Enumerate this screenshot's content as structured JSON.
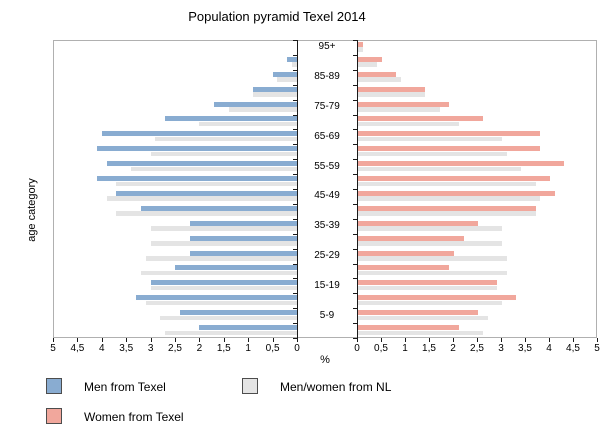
{
  "chart_data": {
    "type": "bar",
    "subtype": "population_pyramid",
    "title": "Population pyramid Texel 2014",
    "xlabel": "%",
    "ylabel": "age category",
    "decimal_separator": ",",
    "grid": false,
    "categories_top_to_bottom": [
      "95+",
      "90-94",
      "85-89",
      "80-84",
      "75-79",
      "70-74",
      "65-69",
      "60-64",
      "55-59",
      "50-54",
      "45-49",
      "40-44",
      "35-39",
      "30-34",
      "25-29",
      "20-24",
      "15-19",
      "10-14",
      "5-9",
      "0-4"
    ],
    "center_labels_visible": [
      "95+",
      "85-89",
      "75-79",
      "65-69",
      "55-59",
      "45-49",
      "35-39",
      "25-29",
      "15-19",
      "5-9"
    ],
    "x_axis": {
      "range_per_side": [
        0,
        5
      ],
      "unit": "%",
      "left_tick_labels": [
        "5",
        "4,5",
        "4",
        "3,5",
        "3",
        "2,5",
        "2",
        "1,5",
        "1",
        "0,5",
        "0"
      ],
      "right_tick_labels": [
        "0",
        "0,5",
        "1",
        "1,5",
        "2",
        "2,5",
        "3",
        "3,5",
        "4",
        "4,5",
        "5"
      ]
    },
    "series": [
      {
        "name": "Men from Texel",
        "side": "left",
        "color": "#89acd1",
        "values": [
          0,
          0.2,
          0.5,
          0.9,
          1.7,
          2.7,
          4.0,
          4.1,
          3.9,
          4.1,
          3.7,
          3.2,
          2.2,
          2.2,
          2.2,
          2.5,
          3.0,
          3.3,
          2.4,
          2.0
        ]
      },
      {
        "name": "Men/women from NL",
        "side": "left",
        "color": "#e4e4e4",
        "values": [
          0,
          0.1,
          0.4,
          0.9,
          1.4,
          2.0,
          2.9,
          3.0,
          3.4,
          3.7,
          3.9,
          3.7,
          3.0,
          3.0,
          3.1,
          3.2,
          3.0,
          3.1,
          2.8,
          2.7
        ]
      },
      {
        "name": "Women from Texel",
        "side": "right",
        "color": "#f1a79c",
        "values": [
          0.1,
          0.5,
          0.8,
          1.4,
          1.9,
          2.6,
          3.8,
          3.8,
          4.3,
          4.0,
          4.1,
          3.7,
          2.5,
          2.2,
          2.0,
          1.9,
          2.9,
          3.3,
          2.5,
          2.1
        ]
      },
      {
        "name": "Men/women from NL",
        "side": "right",
        "color": "#e4e4e4",
        "values": [
          0.1,
          0.4,
          0.9,
          1.4,
          1.7,
          2.1,
          3.0,
          3.1,
          3.4,
          3.7,
          3.8,
          3.7,
          3.0,
          3.0,
          3.1,
          3.1,
          2.9,
          3.0,
          2.7,
          2.6
        ]
      }
    ],
    "legend": {
      "position": "below-chart",
      "items": [
        {
          "label": "Men from Texel",
          "color": "#89acd1"
        },
        {
          "label": "Women from Texel",
          "color": "#f1a79c"
        },
        {
          "label": "Men/women from NL",
          "color": "#e4e4e4"
        }
      ]
    },
    "colors": {
      "axis_line": "#1a1a1a",
      "plot_border": "#b0b0b0",
      "text": "#000000"
    }
  }
}
